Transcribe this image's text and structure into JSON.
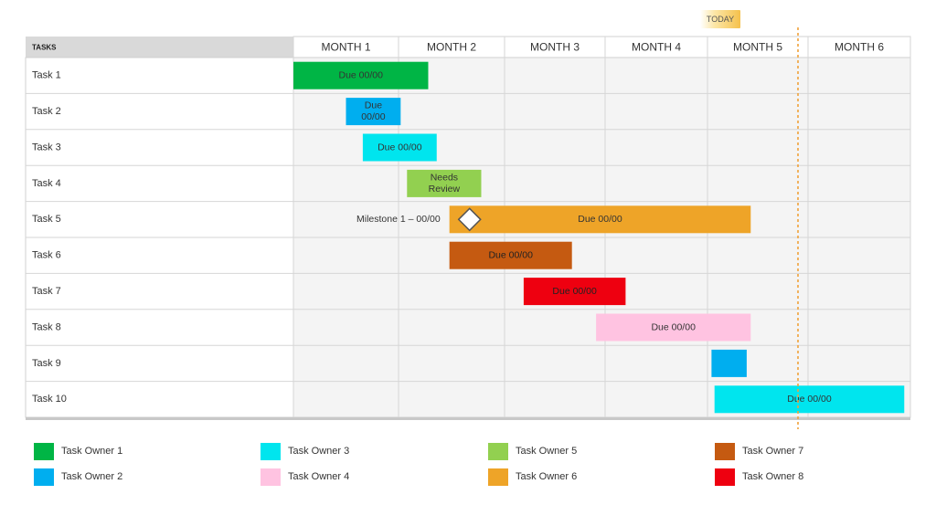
{
  "chart_data": {
    "type": "gantt",
    "today_label": "TODAY",
    "today_month": 4.9,
    "tasks_header": "TASKS",
    "months": [
      "MONTH 1",
      "MONTH 2",
      "MONTH 3",
      "MONTH 4",
      "MONTH 5",
      "MONTH 6"
    ],
    "tasks": [
      {
        "name": "Task 1",
        "start": 0.0,
        "end": 1.28,
        "label": "Due 00/00",
        "owner": "Task Owner 1"
      },
      {
        "name": "Task 2",
        "start": 0.5,
        "end": 1.02,
        "label": "Due\n00/00",
        "owner": "Task Owner 2"
      },
      {
        "name": "Task 3",
        "start": 0.66,
        "end": 1.36,
        "label": "Due 00/00",
        "owner": "Task Owner 3"
      },
      {
        "name": "Task 4",
        "start": 1.08,
        "end": 1.78,
        "label": "Needs\nReview",
        "owner": "Task Owner 5"
      },
      {
        "name": "Task 5",
        "start": 1.48,
        "end": 4.43,
        "label": "Due 00/00",
        "owner": "Task Owner 6",
        "milestone": {
          "at": 1.67,
          "label": "Milestone 1 – 00/00"
        }
      },
      {
        "name": "Task 6",
        "start": 1.48,
        "end": 2.67,
        "label": "Due 00/00",
        "owner": "Task Owner 7"
      },
      {
        "name": "Task 7",
        "start": 2.19,
        "end": 3.2,
        "label": "Due 00/00",
        "owner": "Task Owner 8"
      },
      {
        "name": "Task 8",
        "start": 2.91,
        "end": 4.43,
        "label": "Due 00/00",
        "owner": "Task Owner 4"
      },
      {
        "name": "Task 9",
        "start": 4.04,
        "end": 4.39,
        "label": "",
        "owner": "Task Owner 2"
      },
      {
        "name": "Task 10",
        "start": 4.07,
        "end": 5.94,
        "label": "Due 00/00",
        "owner": "Task Owner 3"
      }
    ],
    "owners": [
      {
        "name": "Task Owner 1",
        "color": "#00b545"
      },
      {
        "name": "Task Owner 2",
        "color": "#00aeef"
      },
      {
        "name": "Task Owner 3",
        "color": "#00e5ee"
      },
      {
        "name": "Task Owner 4",
        "color": "#ffc3e1"
      },
      {
        "name": "Task Owner 5",
        "color": "#92d050"
      },
      {
        "name": "Task Owner 6",
        "color": "#eea428"
      },
      {
        "name": "Task Owner 7",
        "color": "#c55a11"
      },
      {
        "name": "Task Owner 8",
        "color": "#ee0010"
      }
    ]
  }
}
